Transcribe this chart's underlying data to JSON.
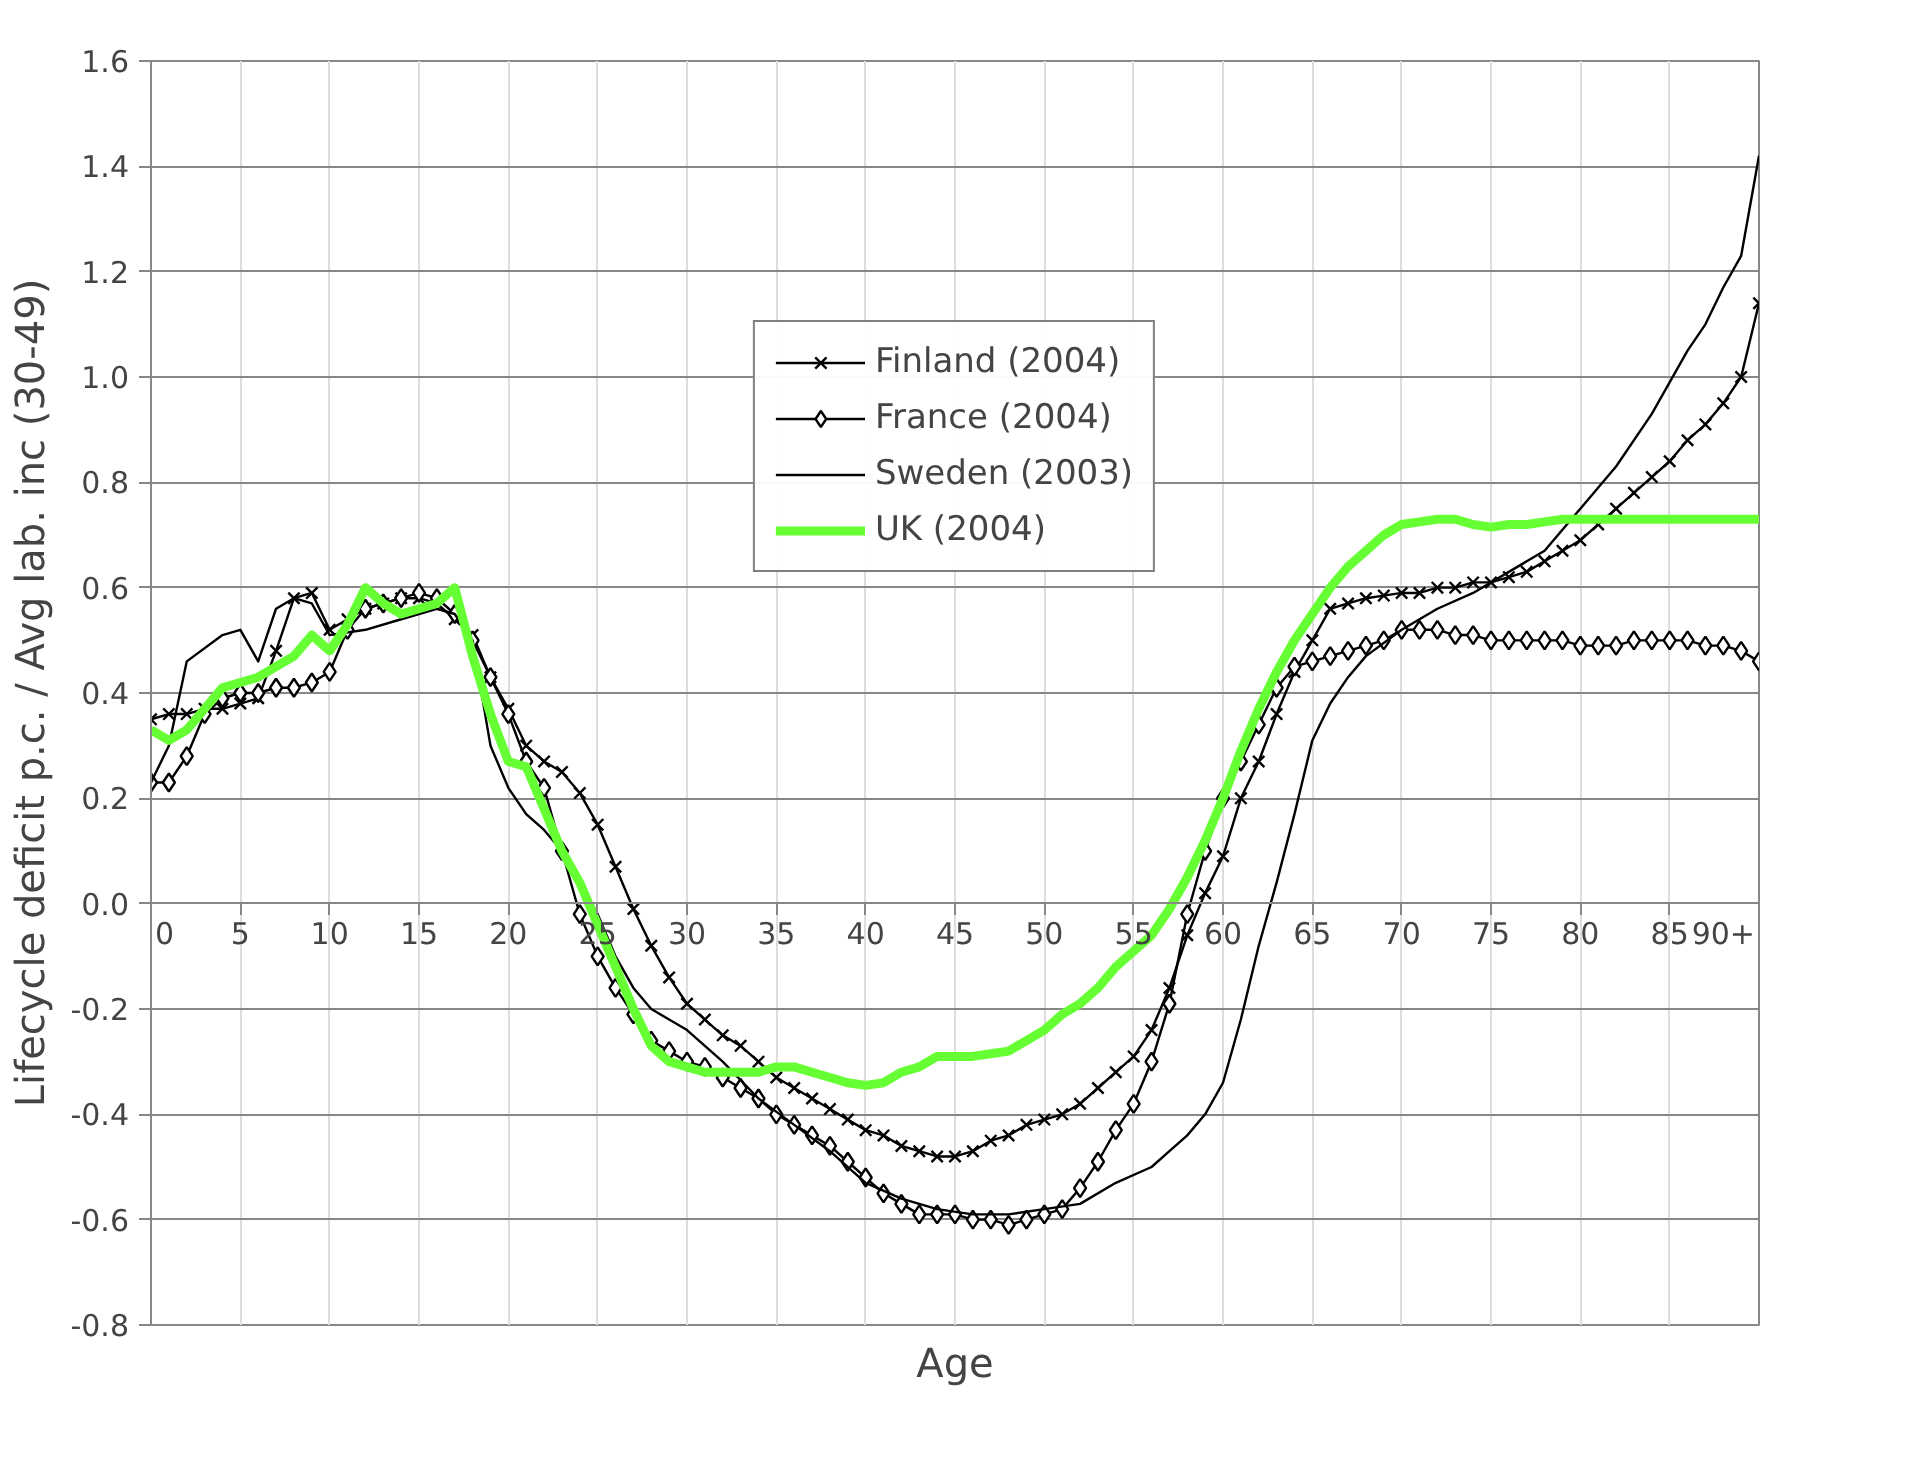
{
  "chart_data": {
    "type": "line",
    "xlabel": "Age",
    "ylabel": "Lifecycle deficit p.c. / Avg lab. inc (30-49)",
    "x": [
      0,
      1,
      2,
      3,
      4,
      5,
      6,
      7,
      8,
      9,
      10,
      11,
      12,
      13,
      14,
      15,
      16,
      17,
      18,
      19,
      20,
      21,
      22,
      23,
      24,
      25,
      26,
      27,
      28,
      29,
      30,
      31,
      32,
      33,
      34,
      35,
      36,
      37,
      38,
      39,
      40,
      41,
      42,
      43,
      44,
      45,
      46,
      47,
      48,
      49,
      50,
      51,
      52,
      53,
      54,
      55,
      56,
      57,
      58,
      59,
      60,
      61,
      62,
      63,
      64,
      65,
      66,
      67,
      68,
      69,
      70,
      71,
      72,
      73,
      74,
      75,
      76,
      77,
      78,
      79,
      80,
      81,
      82,
      83,
      84,
      85,
      86,
      87,
      88,
      89,
      90
    ],
    "series": [
      {
        "name": "Finland (2004)",
        "color": "#000000",
        "marker": "cross",
        "values": [
          0.35,
          0.36,
          0.36,
          0.37,
          0.37,
          0.38,
          0.39,
          0.48,
          0.58,
          0.59,
          0.52,
          0.54,
          0.56,
          0.57,
          0.58,
          0.58,
          0.57,
          0.54,
          0.51,
          0.43,
          0.37,
          0.3,
          0.27,
          0.25,
          0.21,
          0.15,
          0.07,
          -0.01,
          -0.08,
          -0.14,
          -0.19,
          -0.22,
          -0.25,
          -0.27,
          -0.3,
          -0.33,
          -0.35,
          -0.37,
          -0.39,
          -0.41,
          -0.43,
          -0.44,
          -0.46,
          -0.47,
          -0.48,
          -0.48,
          -0.47,
          -0.45,
          -0.44,
          -0.42,
          -0.41,
          -0.4,
          -0.38,
          -0.35,
          -0.32,
          -0.29,
          -0.24,
          -0.16,
          -0.06,
          0.02,
          0.09,
          0.2,
          0.27,
          0.36,
          0.44,
          0.5,
          0.56,
          0.57,
          0.58,
          0.585,
          0.59,
          0.59,
          0.6,
          0.6,
          0.61,
          0.61,
          0.62,
          0.63,
          0.65,
          0.67,
          0.69,
          0.72,
          0.75,
          0.78,
          0.81,
          0.84,
          0.88,
          0.91,
          0.95,
          1.0,
          1.14
        ]
      },
      {
        "name": "France (2004)",
        "color": "#000000",
        "marker": "diamond",
        "values": [
          0.23,
          0.23,
          0.28,
          0.36,
          0.39,
          0.4,
          0.4,
          0.41,
          0.41,
          0.42,
          0.44,
          0.52,
          0.56,
          0.57,
          0.58,
          0.59,
          0.58,
          0.55,
          0.5,
          0.43,
          0.36,
          0.27,
          0.22,
          0.1,
          -0.02,
          -0.1,
          -0.16,
          -0.21,
          -0.26,
          -0.28,
          -0.3,
          -0.31,
          -0.33,
          -0.35,
          -0.37,
          -0.4,
          -0.42,
          -0.44,
          -0.46,
          -0.49,
          -0.52,
          -0.55,
          -0.57,
          -0.59,
          -0.59,
          -0.59,
          -0.6,
          -0.6,
          -0.61,
          -0.6,
          -0.59,
          -0.58,
          -0.54,
          -0.49,
          -0.43,
          -0.38,
          -0.3,
          -0.19,
          -0.02,
          0.1,
          0.2,
          0.27,
          0.34,
          0.41,
          0.45,
          0.46,
          0.47,
          0.48,
          0.49,
          0.5,
          0.52,
          0.52,
          0.52,
          0.51,
          0.51,
          0.5,
          0.5,
          0.5,
          0.5,
          0.5,
          0.49,
          0.49,
          0.49,
          0.5,
          0.5,
          0.5,
          0.5,
          0.49,
          0.49,
          0.48,
          0.46
        ]
      },
      {
        "name": "Sweden (2003)",
        "color": "#000000",
        "marker": "none",
        "x": [
          0,
          1,
          2,
          4,
          5,
          6,
          7,
          8,
          9,
          10,
          12,
          14,
          16,
          17,
          18,
          19,
          20,
          21,
          22,
          23,
          24,
          25,
          26,
          27,
          28,
          29,
          30,
          32,
          34,
          36,
          38,
          40,
          42,
          44,
          46,
          48,
          50,
          52,
          54,
          56,
          57,
          58,
          59,
          60,
          61,
          62,
          63,
          64,
          65,
          66,
          67,
          68,
          70,
          72,
          74,
          76,
          78,
          80,
          82,
          84,
          86,
          87,
          88,
          89,
          90
        ],
        "values": [
          0.23,
          0.3,
          0.46,
          0.51,
          0.52,
          0.46,
          0.56,
          0.58,
          0.57,
          0.51,
          0.52,
          0.54,
          0.56,
          0.55,
          0.5,
          0.3,
          0.22,
          0.17,
          0.14,
          0.1,
          0.04,
          -0.02,
          -0.1,
          -0.16,
          -0.2,
          -0.22,
          -0.24,
          -0.3,
          -0.37,
          -0.42,
          -0.47,
          -0.53,
          -0.56,
          -0.58,
          -0.59,
          -0.59,
          -0.58,
          -0.57,
          -0.53,
          -0.5,
          -0.47,
          -0.44,
          -0.4,
          -0.34,
          -0.22,
          -0.08,
          0.04,
          0.17,
          0.31,
          0.38,
          0.43,
          0.47,
          0.52,
          0.56,
          0.59,
          0.63,
          0.67,
          0.75,
          0.83,
          0.93,
          1.05,
          1.1,
          1.17,
          1.23,
          1.42
        ]
      },
      {
        "name": "UK (2004)",
        "color": "#66ff33",
        "marker": "none",
        "values": [
          0.33,
          0.31,
          0.33,
          0.37,
          0.41,
          0.42,
          0.43,
          0.45,
          0.47,
          0.51,
          0.48,
          0.53,
          0.6,
          0.57,
          0.55,
          0.56,
          0.57,
          0.6,
          0.47,
          0.36,
          0.27,
          0.26,
          0.18,
          0.1,
          0.04,
          -0.04,
          -0.12,
          -0.2,
          -0.27,
          -0.3,
          -0.31,
          -0.32,
          -0.32,
          -0.32,
          -0.32,
          -0.31,
          -0.31,
          -0.32,
          -0.33,
          -0.34,
          -0.345,
          -0.34,
          -0.32,
          -0.31,
          -0.29,
          -0.29,
          -0.29,
          -0.285,
          -0.28,
          -0.26,
          -0.24,
          -0.21,
          -0.19,
          -0.16,
          -0.12,
          -0.09,
          -0.06,
          -0.01,
          0.05,
          0.12,
          0.2,
          0.29,
          0.37,
          0.44,
          0.5,
          0.55,
          0.6,
          0.64,
          0.67,
          0.7,
          0.72,
          0.725,
          0.73,
          0.73,
          0.72,
          0.715,
          0.72,
          0.72,
          0.725,
          0.73,
          0.73,
          0.73,
          0.73,
          0.73,
          0.73,
          0.73,
          0.73,
          0.73,
          0.73,
          0.73,
          0.73
        ]
      }
    ],
    "xlim": [
      0,
      90
    ],
    "xticks": [
      0,
      5,
      10,
      15,
      20,
      25,
      30,
      35,
      40,
      45,
      50,
      55,
      60,
      65,
      70,
      75,
      80,
      85,
      {
        "value": 90,
        "label": "90+"
      }
    ],
    "ylim": [
      -0.8,
      1.6
    ],
    "yticks": [
      -0.8,
      -0.6,
      -0.4,
      -0.2,
      {
        "value": 0,
        "label": "0.0"
      },
      0.2,
      0.4,
      0.6,
      0.8,
      {
        "value": 1,
        "label": "1.0"
      },
      1.2,
      1.4,
      1.6
    ],
    "grid": true,
    "legend": "top",
    "line_style": "solid"
  }
}
